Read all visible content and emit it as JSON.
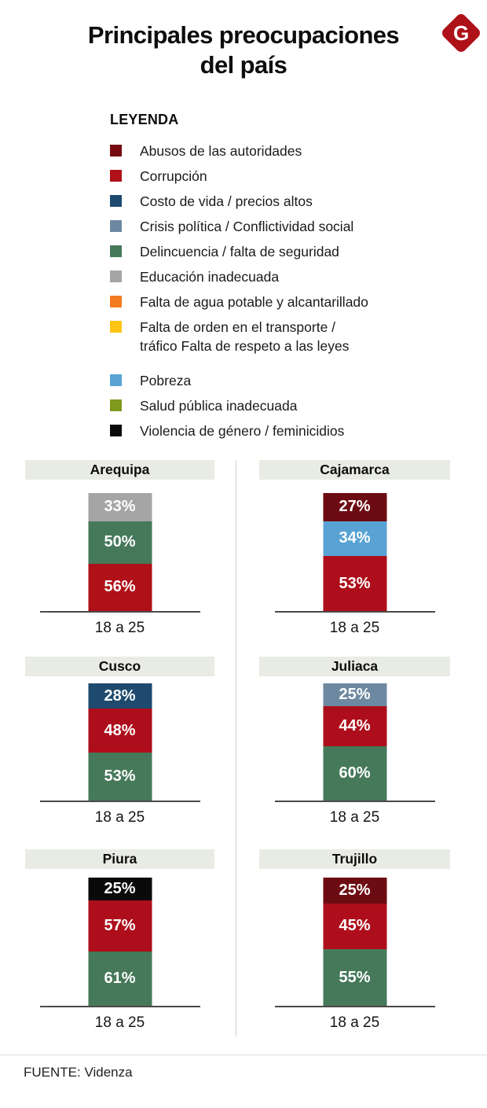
{
  "header": {
    "title_line1": "Principales preocupaciones",
    "title_line2": "del país",
    "logo_letter": "G",
    "logo_color": "#ae1117"
  },
  "legend": {
    "title": "LEYENDA",
    "items": [
      {
        "label": "Abusos de las autoridades",
        "color": "#760c11"
      },
      {
        "label": "Corrupción",
        "color": "#b01119"
      },
      {
        "label": "Costo de vida / precios altos",
        "color": "#1e4a6f"
      },
      {
        "label": "Crisis política / Conflictividad social",
        "color": "#6d89a1"
      },
      {
        "label": "Delincuencia / falta de seguridad",
        "color": "#46795a"
      },
      {
        "label": "Educación inadecuada",
        "color": "#a5a5a5"
      },
      {
        "label": "Falta de agua potable y alcantarillado",
        "color": "#f47b20"
      },
      {
        "label": "Falta de orden en el transporte /\ntráfico Falta de respeto a las leyes",
        "color": "#fdc414"
      },
      {
        "label": "Pobreza",
        "color": "#58a3d4",
        "gap_before": true
      },
      {
        "label": "Salud pública inadecuada",
        "color": "#7f9a1e"
      },
      {
        "label": "Violencia de género / feminicidios",
        "color": "#0a0a0a"
      }
    ]
  },
  "chart_data": {
    "type": "bar",
    "stacked": true,
    "title": "Principales preocupaciones del país",
    "x_category": "18 a 25",
    "note": "Each chart is one stacked column for the 18-25 age group; segments listed top to bottom; values in percent",
    "charts": [
      {
        "city": "Arequipa",
        "x_label": "18 a 25",
        "segments": [
          {
            "category": "Educación inadecuada",
            "value": 33,
            "label": "33%",
            "color": "#a5a5a5"
          },
          {
            "category": "Delincuencia / falta de seguridad",
            "value": 50,
            "label": "50%",
            "color": "#46795a"
          },
          {
            "category": "Corrupción",
            "value": 56,
            "label": "56%",
            "color": "#b01119"
          }
        ]
      },
      {
        "city": "Cajamarca",
        "x_label": "18 a 25",
        "segments": [
          {
            "category": "Abusos de las autoridades",
            "value": 27,
            "label": "27%",
            "color": "#6d0b12"
          },
          {
            "category": "Pobreza",
            "value": 34,
            "label": "34%",
            "color": "#58a3d4"
          },
          {
            "category": "Corrupción",
            "value": 53,
            "label": "53%",
            "color": "#ae0e1b"
          }
        ]
      },
      {
        "city": "Cusco",
        "x_label": "18 a 25",
        "segments": [
          {
            "category": "Costo de vida / precios altos",
            "value": 28,
            "label": "28%",
            "color": "#1e4a6f"
          },
          {
            "category": "Corrupción",
            "value": 48,
            "label": "48%",
            "color": "#ae0e1b"
          },
          {
            "category": "Delincuencia / falta de seguridad",
            "value": 53,
            "label": "53%",
            "color": "#46795a"
          }
        ]
      },
      {
        "city": "Juliaca",
        "x_label": "18 a 25",
        "segments": [
          {
            "category": "Crisis política / Conflictividad social",
            "value": 25,
            "label": "25%",
            "color": "#6d89a1"
          },
          {
            "category": "Corrupción",
            "value": 44,
            "label": "44%",
            "color": "#ae0e1b"
          },
          {
            "category": "Delincuencia / falta de seguridad",
            "value": 60,
            "label": "60%",
            "color": "#46795a"
          }
        ]
      },
      {
        "city": "Piura",
        "x_label": "18 a 25",
        "segments": [
          {
            "category": "Violencia de género / feminicidios",
            "value": 25,
            "label": "25%",
            "color": "#0a0a0a"
          },
          {
            "category": "Corrupción",
            "value": 57,
            "label": "57%",
            "color": "#ae0e1b"
          },
          {
            "category": "Delincuencia / falta de seguridad",
            "value": 61,
            "label": "61%",
            "color": "#46795a"
          }
        ]
      },
      {
        "city": "Trujillo",
        "x_label": "18 a 25",
        "segments": [
          {
            "category": "Abusos de las autoridades",
            "value": 25,
            "label": "25%",
            "color": "#6d0b12"
          },
          {
            "category": "Corrupción",
            "value": 45,
            "label": "45%",
            "color": "#ae0e1b"
          },
          {
            "category": "Delincuencia / falta de seguridad",
            "value": 55,
            "label": "55%",
            "color": "#46795a"
          }
        ]
      }
    ]
  },
  "footer": {
    "source": "FUENTE: Videnza"
  }
}
